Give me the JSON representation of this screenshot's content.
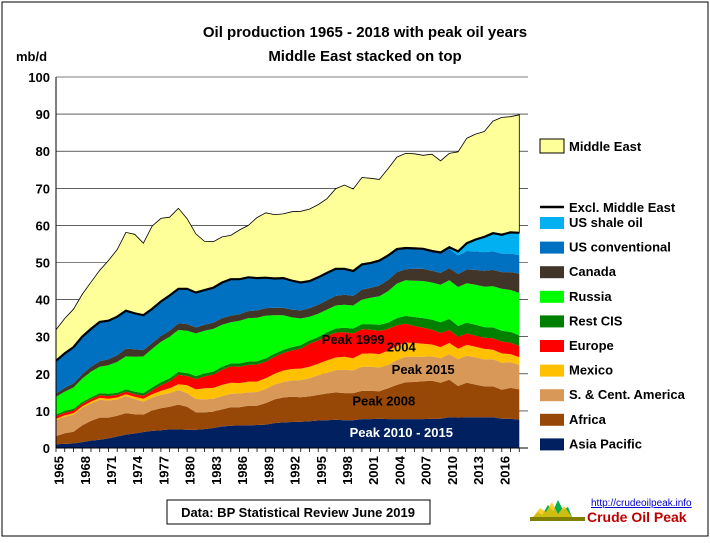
{
  "chart_data": {
    "type": "area",
    "stacked": true,
    "title": "Oil production 1965 - 2018 with peak oil years",
    "subtitle": "Middle East stacked  on top",
    "ylabel": "mb/d",
    "xlabel": "",
    "ylim": [
      0,
      100
    ],
    "yticks": [
      0,
      10,
      20,
      30,
      40,
      50,
      60,
      70,
      80,
      90,
      100
    ],
    "xticks": [
      1965,
      1968,
      1971,
      1974,
      1977,
      1980,
      1983,
      1986,
      1989,
      1992,
      1995,
      1998,
      2001,
      2004,
      2007,
      2010,
      2013,
      2016
    ],
    "grid": "horizontal",
    "legend": "right",
    "source": "Data: BP Statistical Review June 2019",
    "logo": {
      "url": "http://crudeoilpeak.info",
      "name": "Crude Oil Peak"
    },
    "x": [
      1965,
      1966,
      1967,
      1968,
      1969,
      1970,
      1971,
      1972,
      1973,
      1974,
      1975,
      1976,
      1977,
      1978,
      1979,
      1980,
      1981,
      1982,
      1983,
      1984,
      1985,
      1986,
      1987,
      1988,
      1989,
      1990,
      1991,
      1992,
      1993,
      1994,
      1995,
      1996,
      1997,
      1998,
      1999,
      2000,
      2001,
      2002,
      2003,
      2004,
      2005,
      2006,
      2007,
      2008,
      2009,
      2010,
      2011,
      2012,
      2013,
      2014,
      2015,
      2016,
      2017,
      2018
    ],
    "series": [
      {
        "name": "Asia Pacific",
        "color": "#002060",
        "values": [
          1.0,
          1.1,
          1.2,
          1.6,
          2.0,
          2.2,
          2.6,
          3.1,
          3.6,
          3.9,
          4.3,
          4.6,
          4.8,
          5.0,
          5.0,
          4.9,
          4.9,
          5.1,
          5.4,
          5.8,
          6.0,
          6.1,
          6.1,
          6.2,
          6.3,
          6.7,
          6.9,
          7.0,
          7.1,
          7.2,
          7.4,
          7.5,
          7.6,
          7.5,
          7.5,
          7.8,
          7.8,
          7.9,
          7.8,
          7.8,
          7.8,
          7.8,
          7.8,
          7.9,
          7.9,
          8.3,
          8.2,
          8.3,
          8.3,
          8.3,
          8.3,
          7.9,
          7.9,
          7.6
        ]
      },
      {
        "name": "Africa",
        "color": "#974706",
        "values": [
          2.2,
          2.9,
          3.2,
          4.5,
          5.3,
          6.0,
          5.6,
          5.6,
          5.8,
          5.2,
          4.7,
          5.5,
          5.9,
          6.1,
          6.7,
          6.2,
          4.7,
          4.5,
          4.4,
          4.6,
          5.0,
          4.9,
          5.3,
          5.2,
          5.8,
          6.4,
          6.7,
          6.8,
          6.6,
          6.7,
          6.9,
          7.2,
          7.4,
          7.3,
          7.3,
          7.6,
          7.6,
          7.4,
          8.3,
          9.2,
          9.9,
          10.0,
          10.2,
          10.2,
          9.7,
          10.1,
          8.5,
          9.3,
          8.8,
          8.3,
          8.3,
          7.8,
          8.3,
          8.2
        ]
      },
      {
        "name": "S. & Cent. America",
        "color": "#D89858",
        "values": [
          4.3,
          4.4,
          4.6,
          4.7,
          4.7,
          4.8,
          4.6,
          4.4,
          4.6,
          4.1,
          3.5,
          3.5,
          3.6,
          3.7,
          3.9,
          3.7,
          3.6,
          3.5,
          3.5,
          3.6,
          3.6,
          3.7,
          3.6,
          3.7,
          3.8,
          4.0,
          4.2,
          4.4,
          4.6,
          4.9,
          5.3,
          5.6,
          6.0,
          6.3,
          6.1,
          6.5,
          6.5,
          6.4,
          6.3,
          6.7,
          6.9,
          6.8,
          6.6,
          6.6,
          6.6,
          6.9,
          7.2,
          7.3,
          7.3,
          7.3,
          7.3,
          7.3,
          6.9,
          6.6
        ]
      },
      {
        "name": "Mexico",
        "color": "#FFC000",
        "values": [
          0.4,
          0.4,
          0.4,
          0.4,
          0.5,
          0.5,
          0.5,
          0.5,
          0.5,
          0.6,
          0.8,
          0.9,
          1.1,
          1.3,
          1.6,
          2.1,
          2.6,
          3.0,
          2.9,
          3.0,
          3.0,
          2.8,
          2.9,
          2.8,
          2.9,
          2.9,
          3.1,
          3.1,
          3.1,
          3.1,
          3.1,
          3.3,
          3.4,
          3.5,
          3.3,
          3.5,
          3.6,
          3.6,
          3.8,
          3.8,
          3.8,
          3.7,
          3.5,
          3.2,
          3.0,
          3.0,
          2.9,
          2.9,
          2.9,
          2.8,
          2.6,
          2.5,
          2.2,
          2.1
        ]
      },
      {
        "name": "Europe",
        "color": "#FF0000",
        "values": [
          0.7,
          0.7,
          0.7,
          0.7,
          0.7,
          0.7,
          0.7,
          0.7,
          0.7,
          0.7,
          0.8,
          1.0,
          1.5,
          1.9,
          2.5,
          2.5,
          2.8,
          3.2,
          3.6,
          4.1,
          4.4,
          4.4,
          4.5,
          4.6,
          4.5,
          4.6,
          4.7,
          5.0,
          5.4,
          6.2,
          6.3,
          6.6,
          6.7,
          6.6,
          6.7,
          6.6,
          6.4,
          6.3,
          5.9,
          5.6,
          5.1,
          4.6,
          4.3,
          4.0,
          3.8,
          3.5,
          3.2,
          3.1,
          3.0,
          3.0,
          3.1,
          3.2,
          3.1,
          3.0
        ]
      },
      {
        "name": "Rest CIS",
        "color": "#008000",
        "values": [
          0.4,
          0.5,
          0.5,
          0.5,
          0.5,
          0.6,
          0.6,
          0.6,
          0.6,
          0.7,
          0.7,
          0.8,
          0.8,
          0.8,
          0.8,
          0.8,
          0.8,
          0.8,
          0.8,
          0.8,
          0.8,
          0.9,
          0.9,
          0.9,
          0.9,
          0.8,
          0.9,
          0.9,
          0.9,
          0.9,
          0.9,
          1.0,
          1.1,
          1.2,
          1.3,
          1.4,
          1.5,
          1.6,
          1.7,
          1.9,
          2.1,
          2.4,
          2.6,
          2.7,
          2.9,
          3.0,
          2.9,
          2.9,
          2.9,
          2.9,
          2.9,
          2.9,
          2.9,
          2.9
        ]
      },
      {
        "name": "Russia",
        "color": "#00FF00",
        "values": [
          4.8,
          5.2,
          5.7,
          6.3,
          6.9,
          7.1,
          7.7,
          8.3,
          8.9,
          9.4,
          9.9,
          10.4,
          10.9,
          11.2,
          11.3,
          11.4,
          11.5,
          11.5,
          11.5,
          11.3,
          11.1,
          11.5,
          11.7,
          11.7,
          11.5,
          10.4,
          9.3,
          8.0,
          7.2,
          6.4,
          6.3,
          6.1,
          6.2,
          6.2,
          6.2,
          6.6,
          7.1,
          7.7,
          8.5,
          9.3,
          9.6,
          9.8,
          10.0,
          10.0,
          10.1,
          10.4,
          10.5,
          10.6,
          10.8,
          10.9,
          11.1,
          11.3,
          11.3,
          11.4
        ]
      },
      {
        "name": "Canada",
        "color": "#403528",
        "values": [
          0.9,
          1.0,
          1.1,
          1.2,
          1.3,
          1.5,
          1.6,
          1.8,
          2.1,
          2.0,
          1.7,
          1.6,
          1.6,
          1.6,
          1.8,
          1.8,
          1.6,
          1.6,
          1.7,
          1.8,
          1.8,
          1.8,
          1.9,
          2.0,
          2.0,
          2.0,
          2.0,
          2.1,
          2.2,
          2.3,
          2.4,
          2.5,
          2.6,
          2.7,
          2.6,
          2.7,
          2.7,
          2.9,
          3.0,
          3.1,
          3.0,
          3.2,
          3.3,
          3.2,
          3.2,
          3.3,
          3.5,
          3.7,
          4.0,
          4.3,
          4.4,
          4.5,
          4.8,
          5.2
        ]
      },
      {
        "name": "US conventional",
        "color": "#0070C0",
        "values": [
          8.8,
          9.3,
          9.8,
          10.1,
          10.2,
          10.6,
          10.4,
          10.4,
          10.2,
          9.7,
          9.4,
          9.2,
          9.3,
          9.5,
          9.3,
          9.5,
          9.4,
          9.4,
          9.4,
          9.6,
          9.8,
          9.4,
          9.1,
          8.7,
          8.2,
          7.9,
          8.0,
          7.8,
          7.5,
          7.3,
          7.4,
          7.4,
          7.3,
          7.0,
          6.7,
          6.8,
          6.7,
          6.7,
          6.6,
          6.2,
          5.7,
          5.5,
          5.4,
          5.3,
          5.4,
          5.2,
          5.0,
          5.0,
          5.0,
          5.0,
          5.0,
          5.0,
          5.0,
          5.0
        ]
      },
      {
        "name": "US shale oil",
        "color": "#00B0F0",
        "values": [
          0,
          0,
          0,
          0,
          0,
          0,
          0,
          0,
          0,
          0,
          0,
          0,
          0,
          0,
          0,
          0,
          0,
          0,
          0,
          0,
          0,
          0,
          0,
          0,
          0,
          0,
          0,
          0,
          0,
          0,
          0,
          0,
          0,
          0,
          0,
          0,
          0,
          0,
          0,
          0,
          0,
          0,
          0,
          0,
          0.1,
          0.4,
          1.1,
          2.1,
          3.2,
          4.1,
          4.9,
          5.1,
          5.7,
          6.0
        ]
      },
      {
        "name": "Middle East",
        "color": "#FFFF99",
        "values": [
          8.4,
          9.4,
          10.2,
          11.4,
          12.6,
          13.9,
          16.2,
          18.1,
          21.1,
          21.3,
          19.4,
          22.3,
          22.4,
          21.1,
          21.7,
          18.9,
          15.8,
          13.1,
          12.4,
          12.3,
          11.8,
          13.3,
          14.0,
          16.3,
          17.5,
          17.2,
          17.3,
          18.6,
          19.2,
          19.4,
          19.6,
          20.0,
          21.6,
          22.6,
          22.1,
          23.4,
          22.8,
          21.9,
          23.4,
          24.8,
          25.5,
          25.5,
          25.2,
          26.1,
          24.7,
          25.3,
          26.8,
          28.3,
          28.4,
          28.4,
          30.2,
          31.6,
          31.2,
          31.8
        ]
      }
    ],
    "total_line": {
      "name": "Excl. Middle East",
      "color": "#000000"
    },
    "annotations": [
      {
        "text": "Peak 1999",
        "color": "#000000",
        "x": 1999,
        "y": 28
      },
      {
        "text": "2004",
        "color": "#000000",
        "x": 2004.5,
        "y": 26
      },
      {
        "text": "Peak 2015",
        "color": "#000000",
        "x": 2007,
        "y": 20
      },
      {
        "text": "Peak 2008",
        "color": "#000000",
        "x": 2002.5,
        "y": 11.5
      },
      {
        "text": "Peak 2010 - 2015",
        "color": "#FFFFFF",
        "x": 2004.5,
        "y": 3
      }
    ]
  }
}
